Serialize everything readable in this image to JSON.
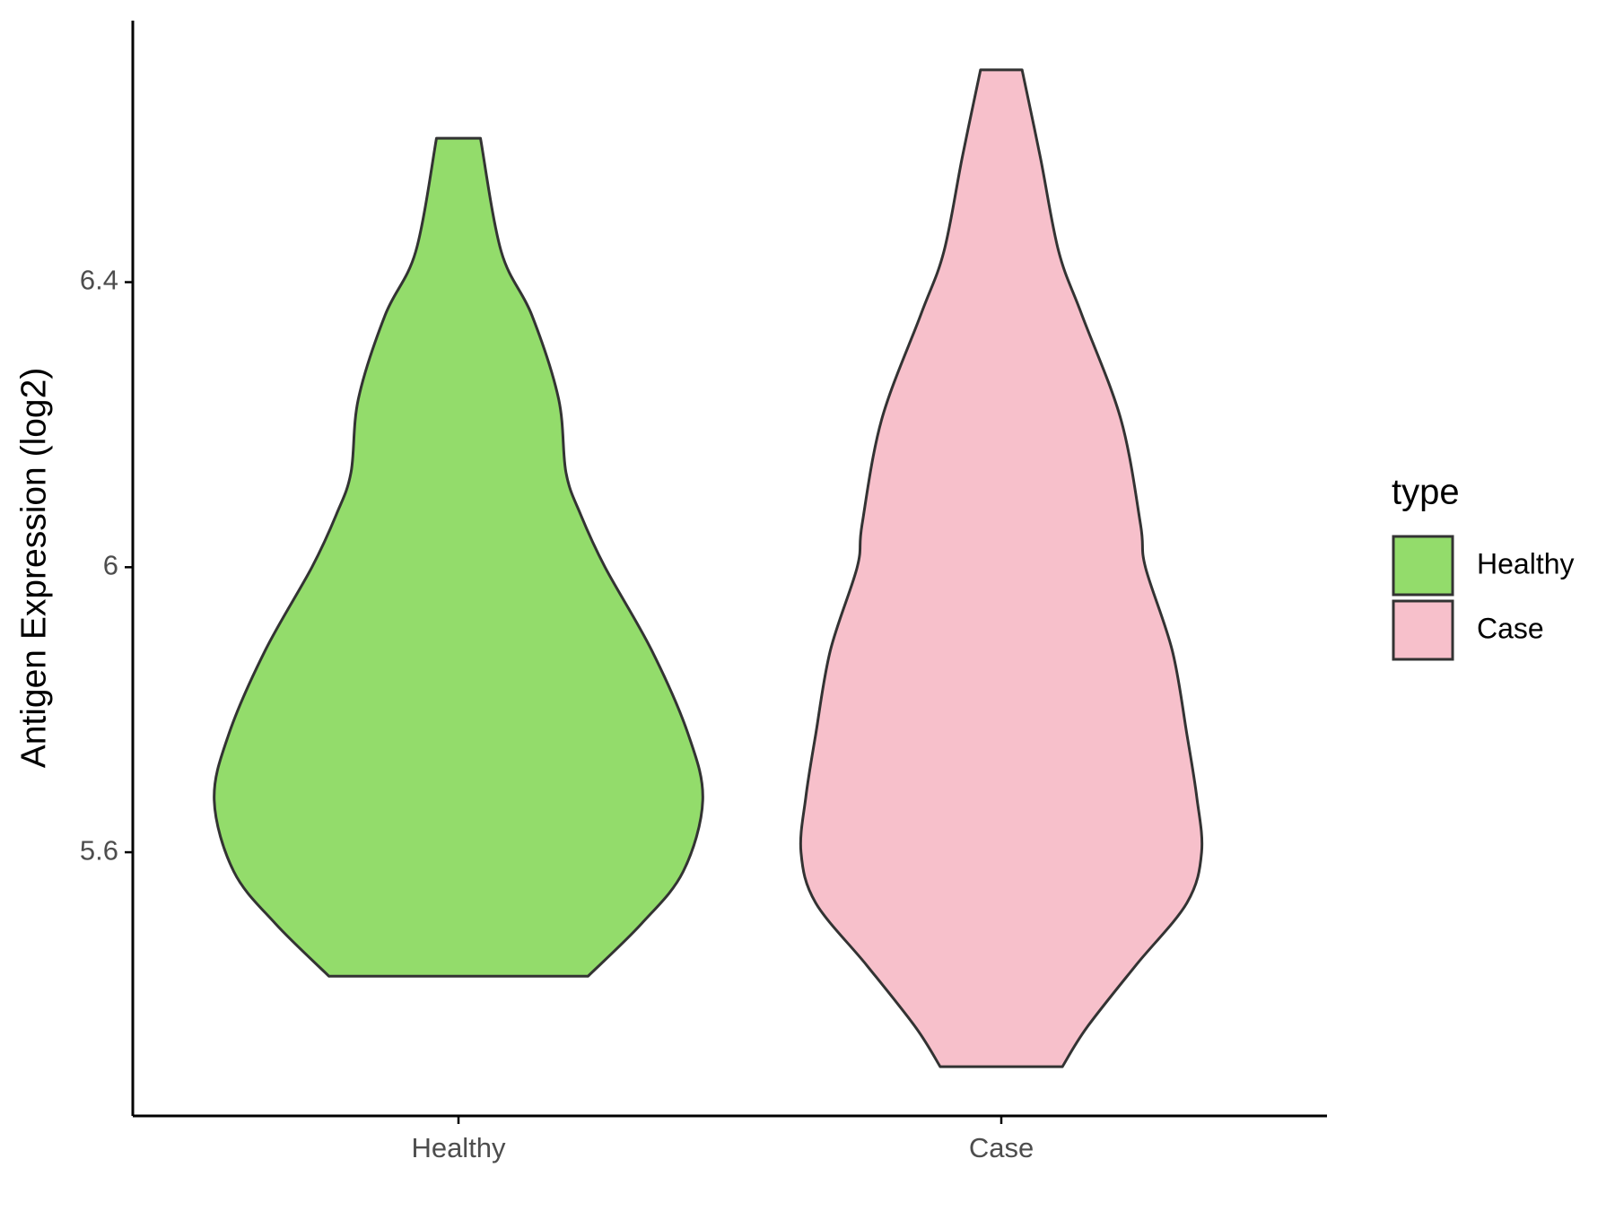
{
  "chart_data": {
    "type": "violin",
    "y_label": "Antigen Expression (log2)",
    "categories": [
      "Healthy",
      "Case"
    ],
    "legend_title": "type",
    "ylim": [
      5.23,
      6.767
    ],
    "yticks": [
      5.6,
      6.0,
      6.4
    ],
    "series": [
      {
        "name": "Healthy",
        "color": "#93dc6b",
        "y": [
          6.602,
          6.443,
          6.354,
          6.236,
          6.133,
          6.074,
          6.0,
          5.884,
          5.766,
          5.673,
          5.573,
          5.5,
          5.426
        ],
        "density": [
          0.09,
          0.175,
          0.3,
          0.41,
          0.44,
          0.5,
          0.6,
          0.79,
          0.94,
          1.0,
          0.92,
          0.75,
          0.53
        ]
      },
      {
        "name": "Case",
        "color": "#f7c0cb",
        "y": [
          6.698,
          6.575,
          6.443,
          6.354,
          6.207,
          6.06,
          6.0,
          5.883,
          5.765,
          5.678,
          5.6,
          5.529,
          5.441,
          5.354,
          5.299
        ],
        "density": [
          0.085,
          0.16,
          0.235,
          0.33,
          0.49,
          0.57,
          0.59,
          0.7,
          0.76,
          0.8,
          0.82,
          0.76,
          0.55,
          0.35,
          0.25
        ]
      }
    ]
  }
}
